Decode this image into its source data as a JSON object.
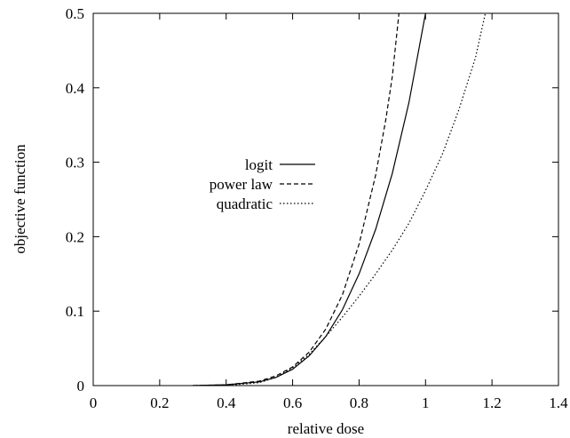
{
  "chart_data": {
    "type": "line",
    "xlabel": "relative dose",
    "ylabel": "objective function",
    "xlim": [
      0,
      1.4
    ],
    "ylim": [
      0,
      0.5
    ],
    "x_ticks": [
      "0",
      "0.2",
      "0.4",
      "0.6",
      "0.8",
      "1",
      "1.2",
      "1.4"
    ],
    "y_ticks": [
      "0",
      "0.1",
      "0.2",
      "0.3",
      "0.4",
      "0.5"
    ],
    "grid": false,
    "legend_position": "center-left",
    "series": [
      {
        "name": "logit",
        "line_style": "solid",
        "x": [
          0.3,
          0.4,
          0.5,
          0.55,
          0.6,
          0.65,
          0.7,
          0.75,
          0.8,
          0.85,
          0.9,
          0.95,
          1.0
        ],
        "y": [
          0.0,
          0.001,
          0.005,
          0.011,
          0.022,
          0.04,
          0.066,
          0.102,
          0.15,
          0.21,
          0.285,
          0.38,
          0.5
        ]
      },
      {
        "name": "power law",
        "line_style": "dashed",
        "x": [
          0.3,
          0.4,
          0.5,
          0.55,
          0.6,
          0.65,
          0.7,
          0.75,
          0.8,
          0.85,
          0.88,
          0.9,
          0.92
        ],
        "y": [
          0.0,
          0.001,
          0.006,
          0.013,
          0.025,
          0.045,
          0.076,
          0.122,
          0.19,
          0.283,
          0.356,
          0.415,
          0.5
        ]
      },
      {
        "name": "quadratic",
        "line_style": "dotted",
        "x": [
          0.3,
          0.4,
          0.5,
          0.55,
          0.6,
          0.65,
          0.7,
          0.75,
          0.8,
          0.85,
          0.9,
          0.95,
          1.0,
          1.05,
          1.1,
          1.15,
          1.18
        ],
        "y": [
          0.0,
          0.0,
          0.004,
          0.011,
          0.024,
          0.042,
          0.066,
          0.092,
          0.12,
          0.15,
          0.182,
          0.218,
          0.262,
          0.31,
          0.37,
          0.44,
          0.5
        ]
      }
    ]
  }
}
